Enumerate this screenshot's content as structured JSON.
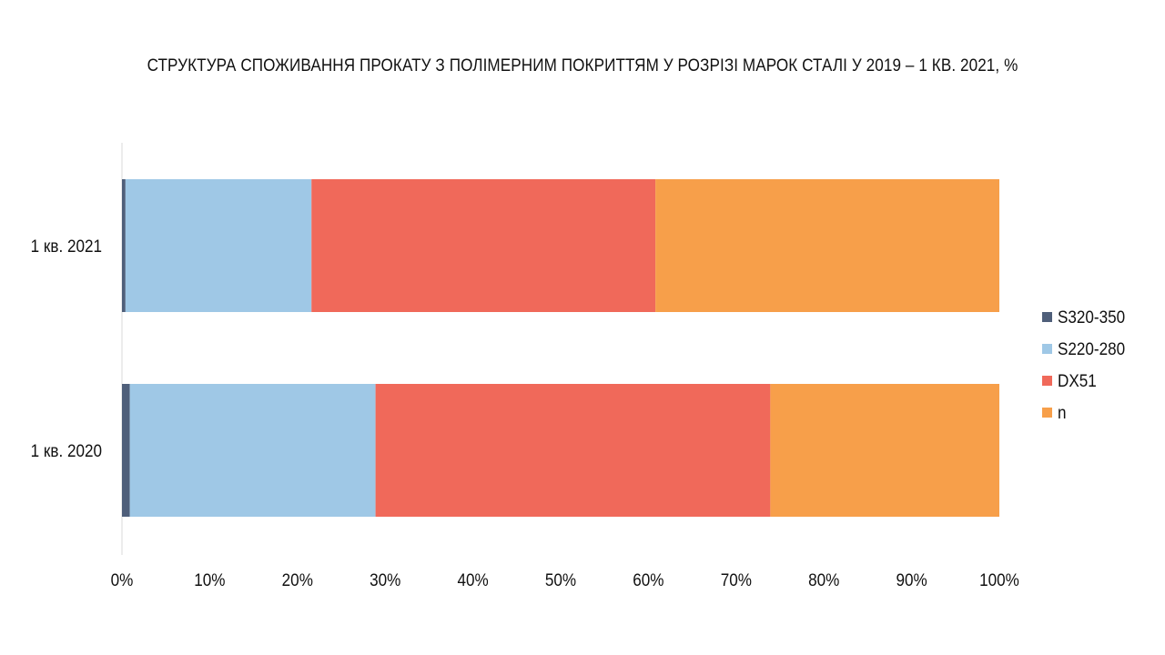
{
  "chart_data": {
    "type": "bar",
    "orientation": "horizontal",
    "stacked": "percent",
    "title": "СТРУКТУРА СПОЖИВАННЯ ПРОКАТУ З ПОЛІМЕРНИМ ПОКРИТТЯМ У РОЗРІЗІ МАРОК СТАЛІ У  2019 – 1 КВ. 2021, %",
    "categories": [
      "1 кв. 2021",
      "1 кв. 2020"
    ],
    "series": [
      {
        "name": "S320-350",
        "color": "#4f5f7a",
        "values": [
          0.4,
          0.9
        ]
      },
      {
        "name": "S220-280",
        "color": "#9fc8e6",
        "values": [
          21.2,
          28.0
        ]
      },
      {
        "name": "DX51",
        "color": "#f0695a",
        "values": [
          39.2,
          45.0
        ]
      },
      {
        "name": "n",
        "color": "#f79f4a",
        "values": [
          39.2,
          26.1
        ]
      }
    ],
    "x_ticks": [
      "0%",
      "10%",
      "20%",
      "30%",
      "40%",
      "50%",
      "60%",
      "70%",
      "80%",
      "90%",
      "100%"
    ],
    "xlim": [
      0,
      100
    ],
    "grid": false,
    "legend_position": "right"
  }
}
